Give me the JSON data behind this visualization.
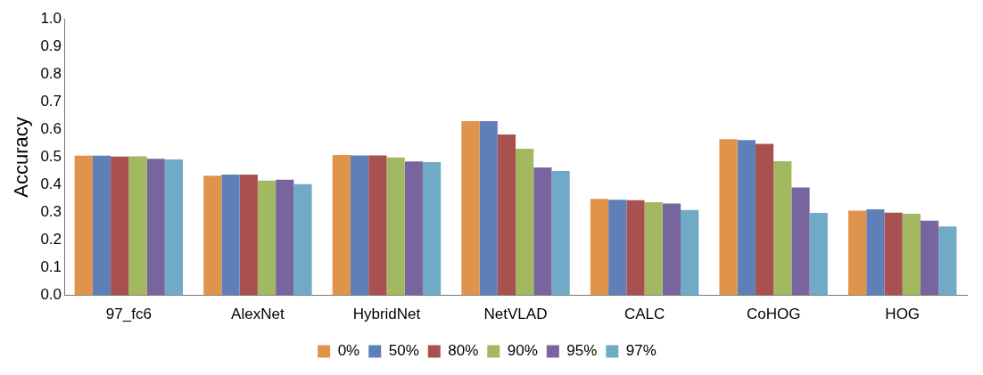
{
  "chart_data": {
    "type": "bar",
    "ylabel": "Accuracy",
    "categories": [
      "97_fc6",
      "AlexNet",
      "HybridNet",
      "NetVLAD",
      "CALC",
      "CoHOG",
      "HOG"
    ],
    "series": [
      {
        "name": "0%",
        "color": "#e0944b",
        "values": [
          0.505,
          0.433,
          0.508,
          0.63,
          0.349,
          0.565,
          0.306
        ]
      },
      {
        "name": "50%",
        "color": "#5f7fb9",
        "values": [
          0.505,
          0.437,
          0.506,
          0.63,
          0.346,
          0.562,
          0.311
        ]
      },
      {
        "name": "80%",
        "color": "#a85150",
        "values": [
          0.502,
          0.437,
          0.506,
          0.582,
          0.344,
          0.548,
          0.299
        ]
      },
      {
        "name": "90%",
        "color": "#a3b961",
        "values": [
          0.503,
          0.415,
          0.499,
          0.53,
          0.337,
          0.485,
          0.295
        ]
      },
      {
        "name": "95%",
        "color": "#78649e",
        "values": [
          0.494,
          0.418,
          0.484,
          0.463,
          0.332,
          0.39,
          0.27
        ]
      },
      {
        "name": "97%",
        "color": "#70aac6",
        "values": [
          0.492,
          0.402,
          0.482,
          0.45,
          0.309,
          0.298,
          0.249
        ]
      }
    ],
    "ylim": [
      0,
      1
    ],
    "yticks": [
      {
        "value": 0,
        "label": "0.0"
      },
      {
        "value": 0.1,
        "label": "0.1"
      },
      {
        "value": 0.2,
        "label": "0.2"
      },
      {
        "value": 0.3,
        "label": "0.3"
      },
      {
        "value": 0.4,
        "label": "0.4"
      },
      {
        "value": 0.5,
        "label": "0.5"
      },
      {
        "value": 0.6,
        "label": "0.6"
      },
      {
        "value": 0.7,
        "label": "0.7"
      },
      {
        "value": 0.8,
        "label": "0.8"
      },
      {
        "value": 0.9,
        "label": "0.9"
      },
      {
        "value": 1,
        "label": "1.0"
      }
    ],
    "grid": false,
    "legend": "bottom"
  }
}
